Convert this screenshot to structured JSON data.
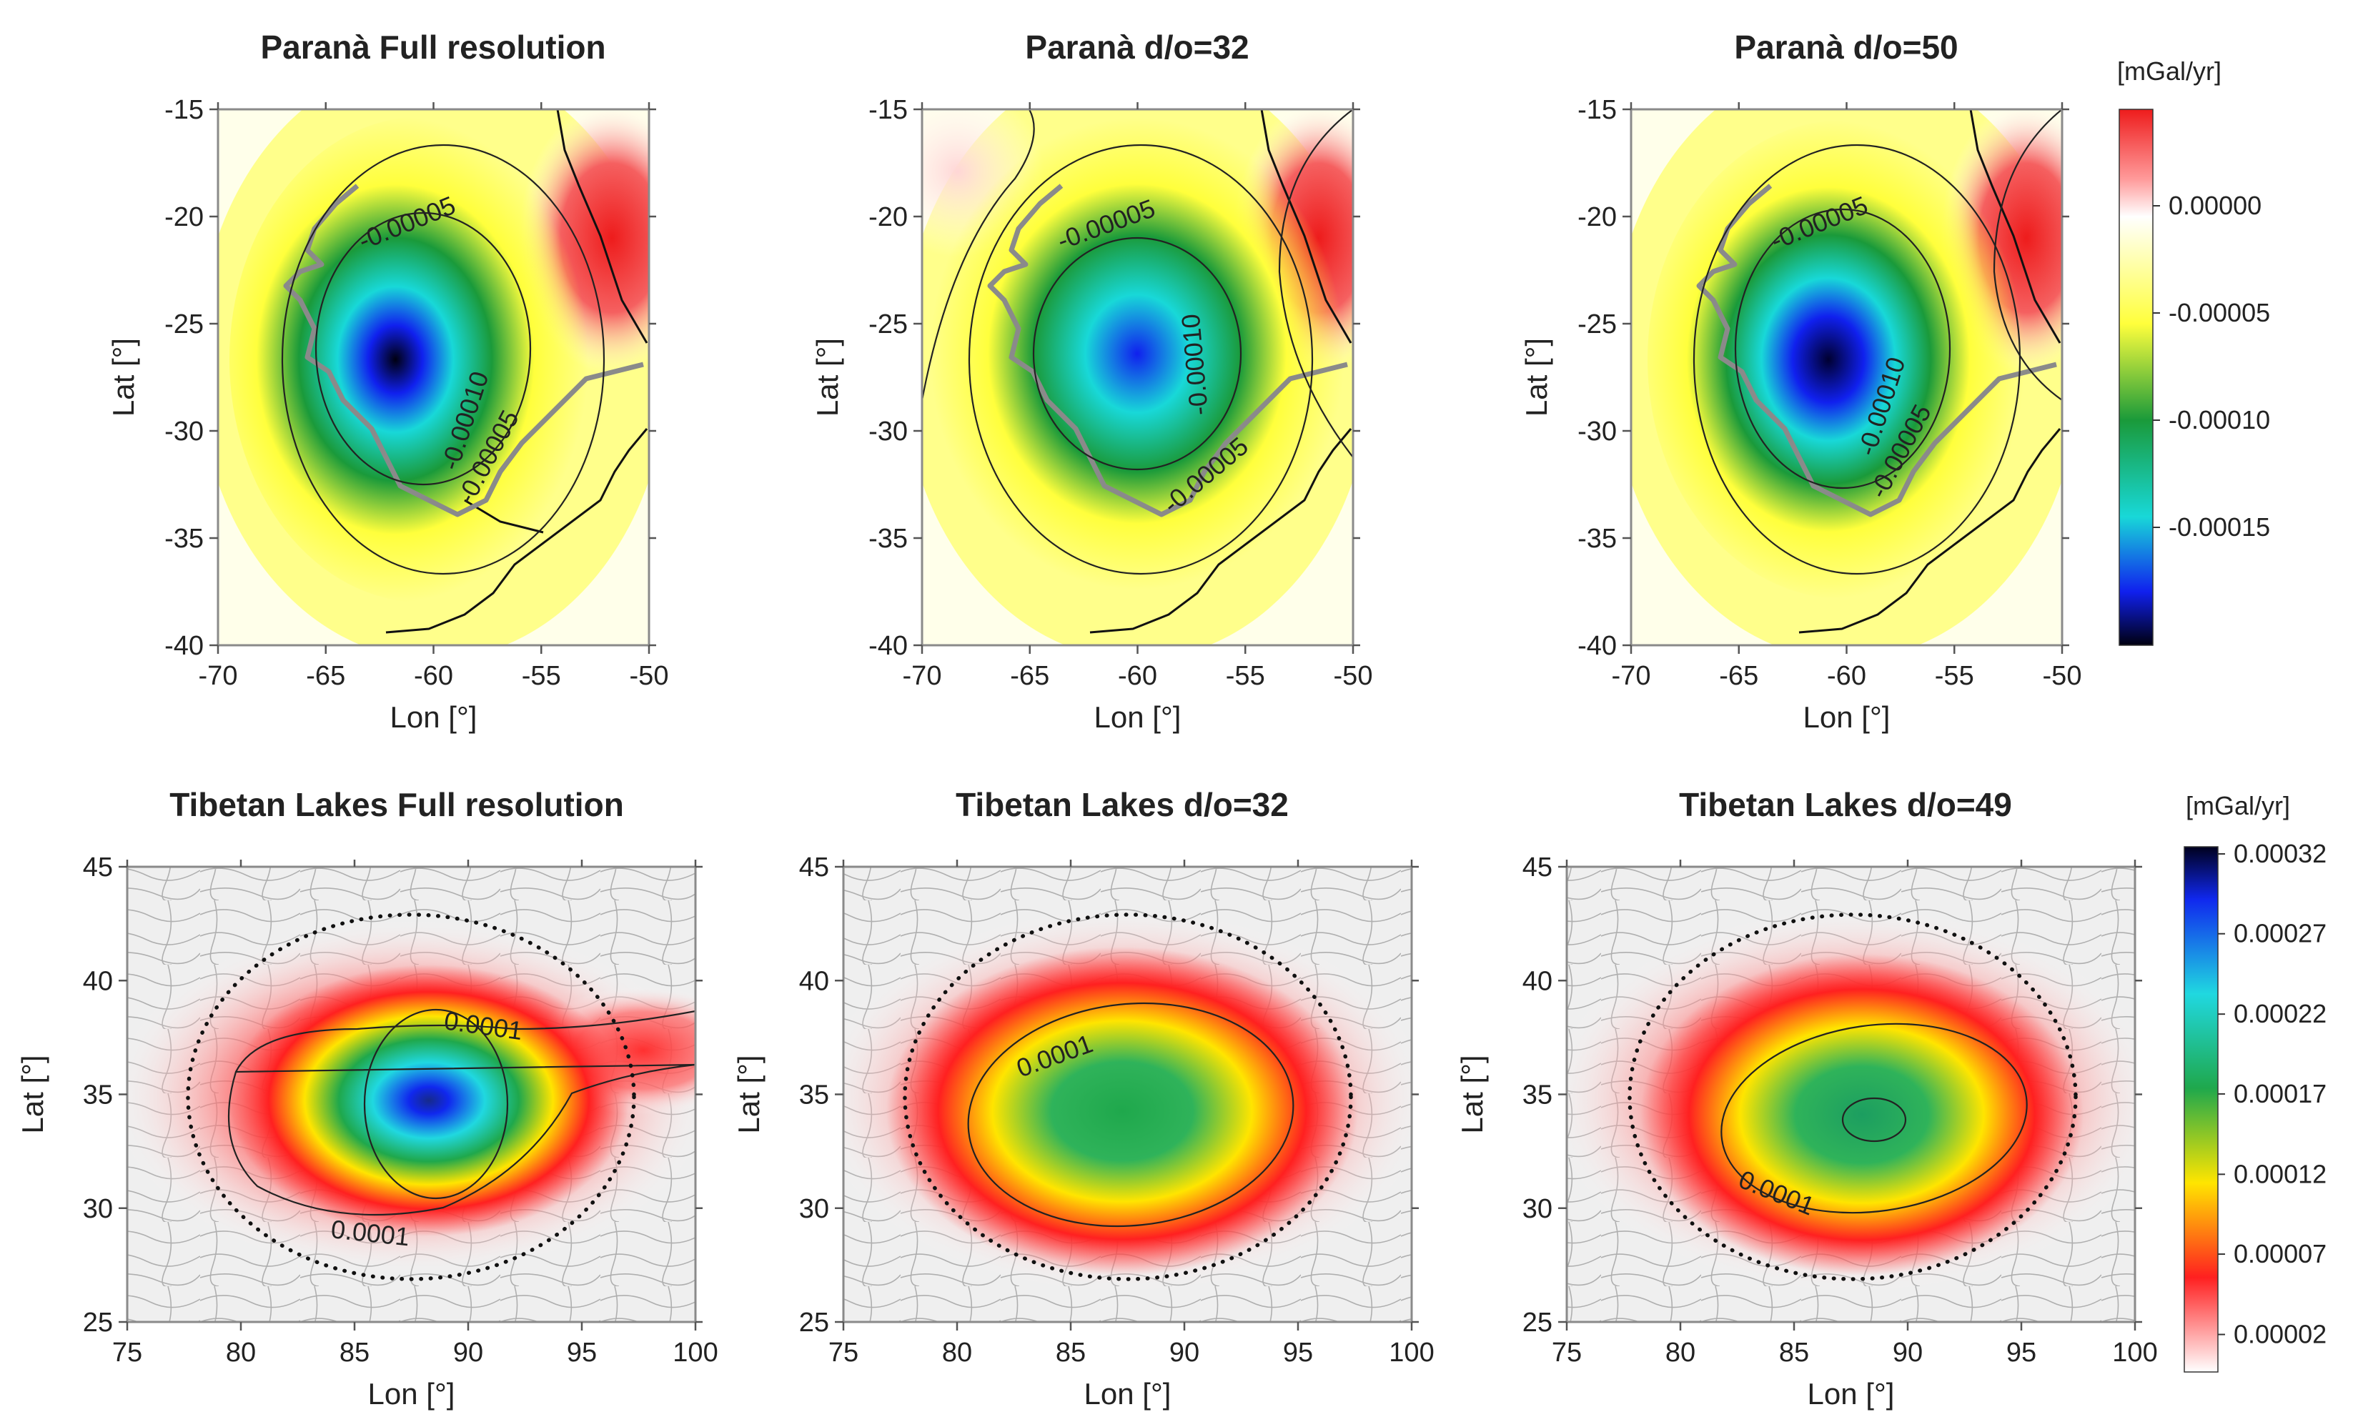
{
  "chart_data": [
    {
      "type": "heatmap",
      "title": "Paranà Full resolution",
      "xlabel": "Lon [°]",
      "ylabel": "Lat [°]",
      "xlim": [
        -70,
        -50
      ],
      "ylim": [
        -40,
        -15
      ],
      "xticks": [
        -70,
        -65,
        -60,
        -55,
        -50
      ],
      "yticks": [
        -40,
        -35,
        -30,
        -25,
        -20,
        -15
      ],
      "anomaly_center": [
        -60.5,
        -27.5
      ],
      "peak_value": -0.00019,
      "contours": [
        {
          "value": -5e-05,
          "label": "-0.00005",
          "rx": 7.5,
          "ry": 10.5
        },
        {
          "value": -0.0001,
          "label": "-0.00010",
          "rx": 5.0,
          "ry": 6.5
        }
      ],
      "contour_labels": [
        "-0.00005",
        "-0.00010",
        "-0.00005"
      ]
    },
    {
      "type": "heatmap",
      "title": "Paranà d/o=32",
      "xlabel": "Lon [°]",
      "ylabel": "Lat [°]",
      "xlim": [
        -70,
        -50
      ],
      "ylim": [
        -40,
        -15
      ],
      "xticks": [
        -70,
        -65,
        -60,
        -55,
        -50
      ],
      "yticks": [
        -40,
        -35,
        -30,
        -25,
        -20,
        -15
      ],
      "anomaly_center": [
        -60.0,
        -27.0
      ],
      "peak_value": -0.00015,
      "contours": [
        {
          "value": -5e-05,
          "label": "-0.00005",
          "rx": 8.0,
          "ry": 10.0
        },
        {
          "value": -0.0001,
          "label": "-0.00010",
          "rx": 5.0,
          "ry": 5.5
        }
      ],
      "contour_labels": [
        "-0.00005",
        "-0.00010",
        "-0.00005"
      ]
    },
    {
      "type": "heatmap",
      "title": "Paranà d/o=50",
      "xlabel": "Lon [°]",
      "ylabel": "Lat [°]",
      "xlim": [
        -70,
        -50
      ],
      "ylim": [
        -40,
        -15
      ],
      "xticks": [
        -70,
        -65,
        -60,
        -55,
        -50
      ],
      "yticks": [
        -40,
        -35,
        -30,
        -25,
        -20,
        -15
      ],
      "anomaly_center": [
        -60.0,
        -27.0
      ],
      "peak_value": -0.00018,
      "contours": [
        {
          "value": -5e-05,
          "label": "-0.00005",
          "rx": 7.5,
          "ry": 10.0
        },
        {
          "value": -0.0001,
          "label": "-0.00010",
          "rx": 5.0,
          "ry": 6.5
        }
      ],
      "contour_labels": [
        "-0.00005",
        "-0.00010",
        "-0.00005"
      ]
    },
    {
      "type": "heatmap",
      "title": "Tibetan Lakes Full resolution",
      "xlabel": "Lon [°]",
      "ylabel": "Lat [°]",
      "xlim": [
        75,
        100
      ],
      "ylim": [
        25,
        45
      ],
      "xticks": [
        75,
        80,
        85,
        90,
        95,
        100
      ],
      "yticks": [
        25,
        30,
        35,
        40,
        45
      ],
      "anomaly_center": [
        89,
        33
      ],
      "peak_value": 0.00032,
      "contours": [
        {
          "value": 0.0001,
          "label": "0.0001"
        }
      ],
      "contour_labels": [
        "0.0001",
        "0.0001"
      ],
      "region_circle": {
        "center": [
          88,
          35
        ],
        "rx": 9.8,
        "ry": 8.0
      }
    },
    {
      "type": "heatmap",
      "title": "Tibetan Lakes d/o=32",
      "xlabel": "Lon [°]",
      "ylabel": "Lat [°]",
      "xlim": [
        75,
        100
      ],
      "ylim": [
        25,
        45
      ],
      "xticks": [
        75,
        80,
        85,
        90,
        95,
        100
      ],
      "yticks": [
        25,
        30,
        35,
        40,
        45
      ],
      "anomaly_center": [
        87.5,
        34
      ],
      "peak_value": 0.0002,
      "contours": [
        {
          "value": 0.0001,
          "label": "0.0001"
        }
      ],
      "contour_labels": [
        "0.0001"
      ],
      "region_circle": {
        "center": [
          88,
          35
        ],
        "rx": 9.8,
        "ry": 8.0
      }
    },
    {
      "type": "heatmap",
      "title": "Tibetan Lakes d/o=49",
      "xlabel": "Lon [°]",
      "ylabel": "Lat [°]",
      "xlim": [
        75,
        100
      ],
      "ylim": [
        25,
        45
      ],
      "xticks": [
        75,
        80,
        85,
        90,
        95,
        100
      ],
      "yticks": [
        25,
        30,
        35,
        40,
        45
      ],
      "anomaly_center": [
        88.5,
        33.5
      ],
      "peak_value": 0.00021,
      "contours": [
        {
          "value": 0.0001,
          "label": "0.0001"
        }
      ],
      "contour_labels": [
        "0.0001"
      ],
      "region_circle": {
        "center": [
          88,
          35
        ],
        "rx": 9.8,
        "ry": 8.0
      }
    }
  ],
  "colorbars": [
    {
      "unit": "[mGal/yr]",
      "ticks": [
        "0.00000",
        "-0.00005",
        "-0.00010",
        "-0.00015"
      ],
      "colors": [
        "#ee1c1c",
        "#ffffff",
        "#ffff3c",
        "#1a9a3a",
        "#18d8d8",
        "#1020ee",
        "#000010"
      ]
    },
    {
      "unit": "[mGal/yr]",
      "ticks": [
        "0.00032",
        "0.00027",
        "0.00022",
        "0.00017",
        "0.00012",
        "0.00007",
        "0.00002"
      ],
      "colors": [
        "#00001e",
        "#1028ee",
        "#20d8e0",
        "#1fa84c",
        "#ffe500",
        "#ff2020",
        "#ffffff"
      ]
    }
  ]
}
